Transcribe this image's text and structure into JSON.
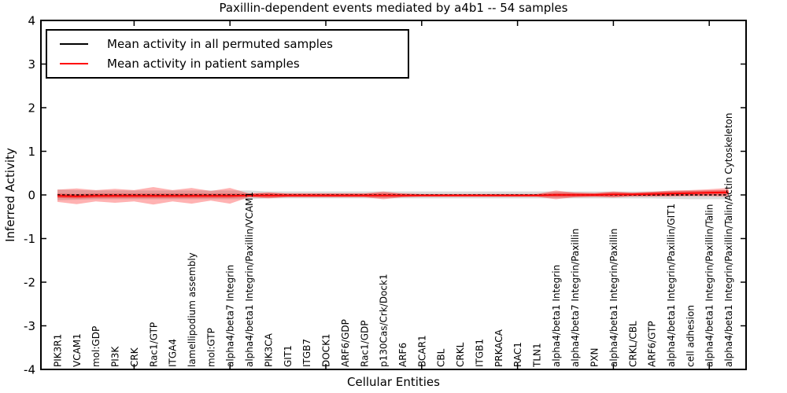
{
  "title": "Paxillin-dependent events mediated by a4b1 -- 54 samples",
  "chart_data": {
    "type": "line",
    "title": "Paxillin-dependent events mediated by a4b1 -- 54 samples",
    "xlabel": "Cellular Entities",
    "ylabel": "Inferred Activity",
    "ylim": [
      -4,
      4
    ],
    "yticks": [
      -4,
      -3,
      -2,
      -1,
      0,
      1,
      2,
      3,
      4
    ],
    "xtick_indices": [
      4,
      9,
      14,
      19,
      24,
      29,
      34
    ],
    "grid": false,
    "legend_position": "upper left",
    "categories": [
      "PIK3R1",
      "VCAM1",
      "mol:GDP",
      "PI3K",
      "CRK",
      "Rac1/GTP",
      "ITGA4",
      "lamellipodium assembly",
      "mol:GTP",
      "alpha4/beta7 Integrin",
      "alpha4/beta1 Integrin/Paxillin/VCAM1",
      "PIK3CA",
      "GIT1",
      "ITGB7",
      "DOCK1",
      "ARF6/GDP",
      "Rac1/GDP",
      "p130Cas/Crk/Dock1",
      "ARF6",
      "BCAR1",
      "CBL",
      "CRKL",
      "ITGB1",
      "PRKACA",
      "RAC1",
      "TLN1",
      "alpha4/beta1 Integrin",
      "alpha4/beta7 Integrin/Paxillin",
      "PXN",
      "alpha4/beta1 Integrin/Paxillin",
      "CRKL/CBL",
      "ARF6/GTP",
      "alpha4/beta1 Integrin/Paxillin/GIT1",
      "cell adhesion",
      "alpha4/beta1 Integrin/Paxillin/Talin",
      "alpha4/beta1 Integrin/Paxillin/Talin/Actin Cytoskeleton"
    ],
    "series": [
      {
        "name": "Mean activity in all permuted samples",
        "color": "#000000",
        "line_style": "dashed",
        "values": [
          0,
          0,
          0,
          0,
          0,
          0,
          0,
          0,
          0,
          0,
          0,
          0,
          0,
          0,
          0,
          0,
          0,
          0,
          0,
          0,
          0,
          0,
          0,
          0,
          0,
          0,
          0,
          0,
          0,
          0,
          0,
          0,
          0,
          0,
          0,
          0
        ],
        "band": {
          "color": "#999999",
          "opacity": 0.35,
          "inner_core": false,
          "half_widths": [
            0.12,
            0.11,
            0.1,
            0.1,
            0.1,
            0.1,
            0.1,
            0.1,
            0.1,
            0.1,
            0.1,
            0.08,
            0.08,
            0.08,
            0.08,
            0.08,
            0.08,
            0.08,
            0.08,
            0.08,
            0.08,
            0.08,
            0.08,
            0.08,
            0.08,
            0.08,
            0.08,
            0.08,
            0.08,
            0.08,
            0.08,
            0.08,
            0.09,
            0.1,
            0.1,
            0.1
          ]
        }
      },
      {
        "name": "Mean activity in patient samples",
        "color": "#ff0000",
        "line_style": "solid",
        "values": [
          -0.02,
          -0.03,
          -0.02,
          -0.02,
          -0.02,
          -0.02,
          -0.02,
          -0.02,
          -0.02,
          -0.02,
          -0.01,
          -0.01,
          -0.01,
          -0.01,
          -0.01,
          -0.01,
          -0.01,
          -0.01,
          -0.01,
          -0.01,
          -0.01,
          -0.01,
          -0.01,
          -0.01,
          -0.01,
          -0.01,
          0,
          0,
          0,
          0.01,
          0.01,
          0.02,
          0.03,
          0.04,
          0.05,
          0.06
        ],
        "band": {
          "color": "#ff0000",
          "opacity": 0.3,
          "inner_core": true,
          "half_widths": [
            0.14,
            0.18,
            0.13,
            0.16,
            0.13,
            0.2,
            0.13,
            0.18,
            0.11,
            0.18,
            0.04,
            0.07,
            0.04,
            0.04,
            0.04,
            0.04,
            0.04,
            0.09,
            0.04,
            0.03,
            0.03,
            0.03,
            0.03,
            0.03,
            0.03,
            0.03,
            0.1,
            0.05,
            0.04,
            0.07,
            0.04,
            0.05,
            0.07,
            0.07,
            0.08,
            0.1
          ]
        }
      }
    ]
  }
}
